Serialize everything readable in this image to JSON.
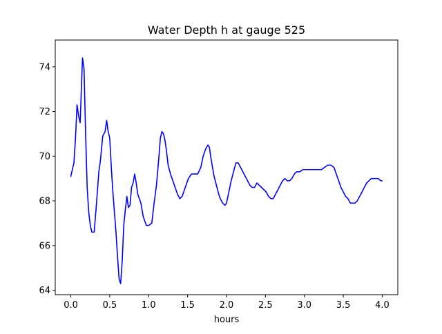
{
  "chart_data": {
    "type": "line",
    "title": "Water Depth h at gauge 525",
    "xlabel": "hours",
    "ylabel": "",
    "xlim": [
      -0.2,
      4.2
    ],
    "ylim": [
      63.8,
      75.2
    ],
    "xticks": [
      0.0,
      0.5,
      1.0,
      1.5,
      2.0,
      2.5,
      3.0,
      3.5,
      4.0
    ],
    "xtick_labels": [
      "0.0",
      "0.5",
      "1.0",
      "1.5",
      "2.0",
      "2.5",
      "3.0",
      "3.5",
      "4.0"
    ],
    "yticks": [
      64,
      66,
      68,
      70,
      72,
      74
    ],
    "ytick_labels": [
      "64",
      "66",
      "68",
      "70",
      "72",
      "74"
    ],
    "grid": false,
    "legend": "none",
    "series": [
      {
        "color": "#0000ff",
        "x": [
          0.0,
          0.02,
          0.04,
          0.06,
          0.08,
          0.1,
          0.12,
          0.15,
          0.17,
          0.19,
          0.21,
          0.23,
          0.25,
          0.27,
          0.3,
          0.33,
          0.36,
          0.38,
          0.41,
          0.44,
          0.46,
          0.48,
          0.5,
          0.52,
          0.54,
          0.56,
          0.58,
          0.6,
          0.62,
          0.64,
          0.66,
          0.68,
          0.7,
          0.72,
          0.74,
          0.76,
          0.78,
          0.8,
          0.82,
          0.84,
          0.86,
          0.88,
          0.9,
          0.93,
          0.97,
          1.0,
          1.04,
          1.07,
          1.1,
          1.13,
          1.15,
          1.17,
          1.19,
          1.21,
          1.23,
          1.25,
          1.28,
          1.31,
          1.34,
          1.37,
          1.4,
          1.43,
          1.47,
          1.51,
          1.55,
          1.59,
          1.63,
          1.67,
          1.7,
          1.73,
          1.76,
          1.78,
          1.8,
          1.82,
          1.84,
          1.87,
          1.9,
          1.92,
          1.95,
          1.98,
          2.0,
          2.03,
          2.06,
          2.09,
          2.12,
          2.15,
          2.18,
          2.21,
          2.24,
          2.27,
          2.3,
          2.33,
          2.36,
          2.39,
          2.42,
          2.45,
          2.48,
          2.51,
          2.54,
          2.57,
          2.6,
          2.63,
          2.66,
          2.69,
          2.72,
          2.75,
          2.78,
          2.81,
          2.84,
          2.87,
          2.9,
          2.94,
          2.98,
          3.02,
          3.06,
          3.1,
          3.14,
          3.18,
          3.22,
          3.26,
          3.3,
          3.34,
          3.38,
          3.41,
          3.44,
          3.47,
          3.5,
          3.53,
          3.56,
          3.59,
          3.62,
          3.65,
          3.68,
          3.71,
          3.74,
          3.77,
          3.8,
          3.83,
          3.86,
          3.89,
          3.92,
          3.95,
          3.98,
          4.0
        ],
        "y": [
          69.1,
          69.4,
          69.7,
          70.8,
          72.3,
          71.8,
          71.5,
          74.4,
          73.9,
          71.0,
          68.6,
          67.5,
          66.9,
          66.6,
          66.6,
          67.9,
          69.3,
          69.8,
          70.9,
          71.1,
          71.6,
          71.1,
          70.8,
          69.5,
          68.4,
          67.5,
          66.6,
          65.5,
          64.5,
          64.3,
          65.3,
          66.9,
          67.6,
          68.2,
          67.7,
          67.8,
          68.6,
          68.8,
          69.2,
          68.8,
          68.3,
          68.1,
          67.9,
          67.3,
          66.9,
          66.9,
          67.0,
          67.9,
          68.7,
          69.9,
          70.8,
          71.1,
          71.0,
          70.7,
          70.2,
          69.6,
          69.2,
          68.9,
          68.6,
          68.3,
          68.1,
          68.2,
          68.6,
          69.0,
          69.2,
          69.2,
          69.2,
          69.5,
          70.0,
          70.3,
          70.5,
          70.4,
          69.9,
          69.5,
          69.1,
          68.7,
          68.3,
          68.1,
          67.9,
          67.8,
          67.9,
          68.4,
          68.9,
          69.3,
          69.7,
          69.7,
          69.5,
          69.3,
          69.1,
          68.9,
          68.7,
          68.6,
          68.6,
          68.8,
          68.7,
          68.6,
          68.5,
          68.4,
          68.2,
          68.1,
          68.1,
          68.3,
          68.5,
          68.7,
          68.9,
          69.0,
          68.9,
          68.9,
          69.0,
          69.2,
          69.3,
          69.3,
          69.4,
          69.4,
          69.4,
          69.4,
          69.4,
          69.4,
          69.4,
          69.5,
          69.6,
          69.6,
          69.5,
          69.2,
          68.9,
          68.6,
          68.4,
          68.2,
          68.1,
          67.9,
          67.9,
          67.9,
          68.0,
          68.2,
          68.4,
          68.6,
          68.8,
          68.9,
          69.0,
          69.0,
          69.0,
          69.0,
          68.9,
          68.9
        ]
      }
    ]
  }
}
